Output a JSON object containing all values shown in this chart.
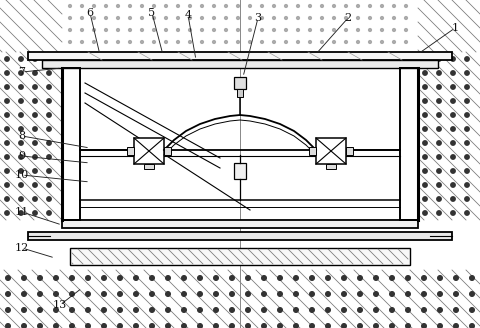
{
  "bg": "#ffffff",
  "lc": "#000000",
  "fig_w": 4.8,
  "fig_h": 3.28,
  "dpi": 100,
  "dot_color": "#333333",
  "hatch_color": "#777777",
  "gray_light": "#e8e8e8",
  "gray_med": "#d0d0d0",
  "labels": {
    "1": [
      455,
      28,
      415,
      52,
      415,
      52
    ],
    "2": [
      348,
      18,
      316,
      52,
      316,
      52
    ],
    "3": [
      258,
      18,
      243,
      77,
      243,
      77
    ],
    "4": [
      188,
      15,
      196,
      52,
      196,
      52
    ],
    "5": [
      152,
      13,
      165,
      52,
      165,
      52
    ],
    "6": [
      90,
      13,
      100,
      52,
      100,
      52
    ],
    "7": [
      22,
      72,
      60,
      67,
      60,
      67
    ],
    "8": [
      22,
      136,
      90,
      148,
      90,
      148
    ],
    "9": [
      22,
      158,
      90,
      165,
      90,
      165
    ],
    "10": [
      22,
      175,
      90,
      183,
      90,
      183
    ],
    "11": [
      22,
      212,
      60,
      225,
      60,
      225
    ],
    "12": [
      22,
      248,
      55,
      258,
      55,
      258
    ],
    "13": [
      60,
      305,
      85,
      286,
      85,
      286
    ]
  }
}
